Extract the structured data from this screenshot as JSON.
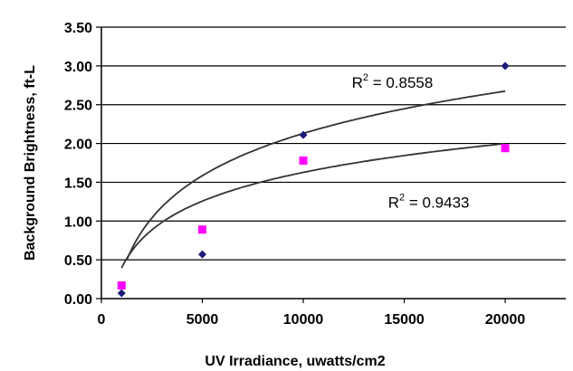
{
  "chart_data": {
    "type": "scatter",
    "xlabel": "UV Irradiance, uwatts/cm2",
    "ylabel": "Background Brightness, ft-L",
    "xlim": [
      0,
      23000
    ],
    "ylim": [
      0,
      3.5
    ],
    "x_ticks": [
      "0",
      "5000",
      "10000",
      "15000",
      "20000"
    ],
    "x_tick_values": [
      0,
      5000,
      10000,
      15000,
      20000
    ],
    "y_ticks": [
      "0.00",
      "0.50",
      "1.00",
      "1.50",
      "2.00",
      "2.50",
      "3.00",
      "3.50"
    ],
    "y_tick_values": [
      0,
      0.5,
      1.0,
      1.5,
      2.0,
      2.5,
      3.0,
      3.5
    ],
    "grid": "horizontal",
    "series": [
      {
        "marker": "diamond",
        "color": "#1a1a7a",
        "x": [
          1000,
          5000,
          10000,
          20000
        ],
        "y": [
          0.07,
          0.57,
          2.11,
          3.0
        ],
        "trendline": {
          "type": "log",
          "a": -5.11,
          "b": 0.786,
          "x_range": [
            1250,
            20000
          ]
        }
      },
      {
        "marker": "square",
        "color": "#ff00ff",
        "x": [
          1000,
          5000,
          10000,
          20000
        ],
        "y": [
          0.17,
          0.89,
          1.78,
          1.94
        ],
        "trendline": {
          "type": "log",
          "a": -3.3,
          "b": 0.535,
          "x_range": [
            1000,
            20000
          ]
        }
      }
    ],
    "annotations": [
      {
        "base": "R",
        "sup": "2",
        "rest": " = 0.8558",
        "anchor": [
          12400,
          2.72
        ]
      },
      {
        "base": "R",
        "sup": "2",
        "rest": " = 0.9433",
        "anchor": [
          14200,
          1.17
        ]
      }
    ],
    "trendline_color": "#333333"
  }
}
